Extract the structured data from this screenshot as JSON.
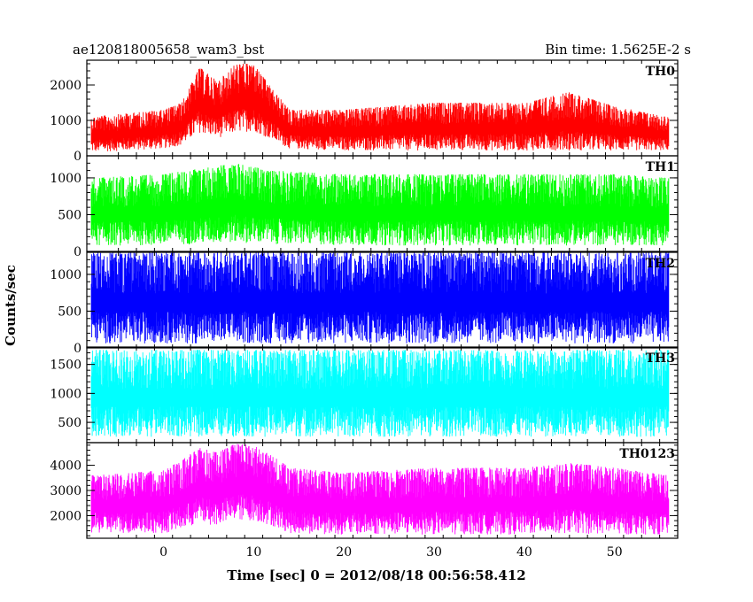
{
  "header": {
    "title": "ae120818005658_wam3_bst",
    "bin_time": "Bin time: 1.5625E-2 s"
  },
  "axes": {
    "ylabel": "Counts/sec",
    "xlabel": "Time [sec] 0 = 2012/08/18 00:56:58.412",
    "x_ticks": [
      "0",
      "10",
      "20",
      "30",
      "40",
      "50"
    ]
  },
  "chart_data": {
    "type": "line",
    "title": "ae120818005658_wam3_bst",
    "subtitle": "Bin time: 1.5625E-2 s",
    "xlabel": "Time [sec] 0 = 2012/08/18 00:56:58.412",
    "ylabel": "Counts/sec",
    "xlim": [
      -8.5,
      57
    ],
    "x_ticks": [
      0,
      10,
      20,
      30,
      40,
      50
    ],
    "panels": [
      {
        "name": "TH0",
        "color": "#ff0000",
        "ylim": [
          0,
          2700
        ],
        "y_ticks": [
          0,
          1000,
          2000
        ],
        "x": [
          -8,
          -4,
          0,
          2,
          4,
          6,
          8,
          10,
          12,
          14,
          20,
          30,
          40,
          45,
          50,
          56
        ],
        "low": [
          100,
          150,
          200,
          300,
          650,
          500,
          650,
          700,
          450,
          200,
          150,
          150,
          150,
          150,
          150,
          150
        ],
        "high": [
          1100,
          1200,
          1300,
          1500,
          2500,
          2100,
          2600,
          2600,
          1900,
          1300,
          1300,
          1500,
          1500,
          1800,
          1400,
          1100
        ]
      },
      {
        "name": "TH1",
        "color": "#00ff00",
        "ylim": [
          0,
          1300
        ],
        "y_ticks": [
          0,
          500,
          1000
        ],
        "x": [
          -8,
          0,
          8,
          12,
          20,
          30,
          40,
          50,
          56
        ],
        "low": [
          80,
          80,
          120,
          100,
          80,
          80,
          80,
          80,
          80
        ],
        "high": [
          1000,
          1050,
          1200,
          1100,
          1050,
          1050,
          1050,
          1050,
          1000
        ]
      },
      {
        "name": "TH2",
        "color": "#0000ff",
        "ylim": [
          0,
          1300
        ],
        "y_ticks": [
          0,
          500,
          1000
        ],
        "x": [
          -8,
          0,
          10,
          20,
          30,
          40,
          50,
          56
        ],
        "low": [
          60,
          60,
          60,
          60,
          60,
          60,
          60,
          60
        ],
        "high": [
          1300,
          1300,
          1300,
          1300,
          1300,
          1300,
          1300,
          1300
        ]
      },
      {
        "name": "TH3",
        "color": "#00ffff",
        "ylim": [
          150,
          1800
        ],
        "y_ticks": [
          500,
          1000,
          1500
        ],
        "x": [
          -8,
          0,
          10,
          20,
          30,
          40,
          50,
          56
        ],
        "low": [
          250,
          250,
          250,
          250,
          250,
          250,
          250,
          250
        ],
        "high": [
          1750,
          1750,
          1750,
          1750,
          1750,
          1750,
          1750,
          1750
        ]
      },
      {
        "name": "TH0123",
        "color": "#ff00ff",
        "ylim": [
          1100,
          4900
        ],
        "y_ticks": [
          2000,
          3000,
          4000
        ],
        "x": [
          -8,
          -4,
          0,
          2,
          4,
          6,
          8,
          10,
          12,
          14,
          20,
          30,
          40,
          45,
          50,
          56
        ],
        "low": [
          1300,
          1300,
          1300,
          1400,
          1700,
          1600,
          1800,
          1800,
          1600,
          1300,
          1250,
          1250,
          1250,
          1300,
          1250,
          1250
        ],
        "high": [
          3600,
          3700,
          3800,
          4200,
          4700,
          4500,
          4900,
          4800,
          4400,
          3900,
          3700,
          3900,
          3900,
          4100,
          3900,
          3600
        ]
      }
    ]
  }
}
